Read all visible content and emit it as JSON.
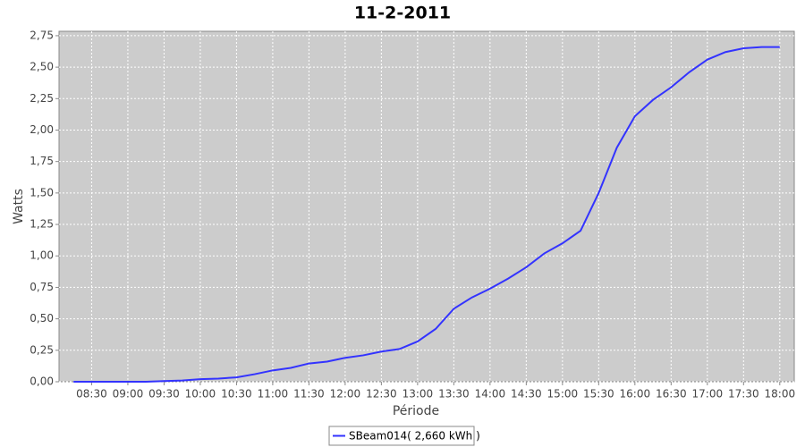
{
  "chart_data": {
    "type": "line",
    "title": "11-2-2011",
    "x_label": "Période",
    "y_label": "Watts",
    "x": [
      "08:15",
      "08:30",
      "08:45",
      "09:00",
      "09:15",
      "09:30",
      "09:45",
      "10:00",
      "10:15",
      "10:30",
      "10:45",
      "11:00",
      "11:15",
      "11:30",
      "11:45",
      "12:00",
      "12:15",
      "12:30",
      "12:45",
      "13:00",
      "13:15",
      "13:30",
      "13:45",
      "14:00",
      "14:15",
      "14:30",
      "14:45",
      "15:00",
      "15:15",
      "15:30",
      "15:45",
      "16:00",
      "16:15",
      "16:30",
      "16:45",
      "17:00",
      "17:15",
      "17:30",
      "17:45",
      "18:00"
    ],
    "series": [
      {
        "name": "SBeam014( 2,660 kWh )",
        "color": "#3333ff",
        "values": [
          0,
          0,
          0,
          0,
          0,
          0.005,
          0.01,
          0.02,
          0.025,
          0.035,
          0.06,
          0.09,
          0.11,
          0.145,
          0.16,
          0.19,
          0.21,
          0.24,
          0.26,
          0.32,
          0.42,
          0.58,
          0.67,
          0.74,
          0.82,
          0.91,
          1.02,
          1.1,
          1.2,
          1.5,
          1.86,
          2.11,
          2.24,
          2.34,
          2.46,
          2.56,
          2.62,
          2.65,
          2.66,
          2.66
        ]
      }
    ],
    "xlim": [
      "08:03",
      "18:12"
    ],
    "xticks": [
      "08:30",
      "09:00",
      "09:30",
      "10:00",
      "10:30",
      "11:00",
      "11:30",
      "12:00",
      "12:30",
      "13:00",
      "13:30",
      "14:00",
      "14:30",
      "15:00",
      "15:30",
      "16:00",
      "16:30",
      "17:00",
      "17:30",
      "18:00"
    ],
    "ylim": [
      0,
      2.785
    ],
    "yticks": [
      {
        "value": 0,
        "label": "0,00"
      },
      {
        "value": 0.25,
        "label": "0,25"
      },
      {
        "value": 0.5,
        "label": "0,50"
      },
      {
        "value": 0.75,
        "label": "0,75"
      },
      {
        "value": 1,
        "label": "1,00"
      },
      {
        "value": 1.25,
        "label": "1,25"
      },
      {
        "value": 1.5,
        "label": "1,50"
      },
      {
        "value": 1.75,
        "label": "1,75"
      },
      {
        "value": 2,
        "label": "2,00"
      },
      {
        "value": 2.25,
        "label": "2,25"
      },
      {
        "value": 2.5,
        "label": "2,50"
      },
      {
        "value": 2.75,
        "label": "2,75"
      }
    ],
    "grid": true,
    "legend": "bottom"
  }
}
